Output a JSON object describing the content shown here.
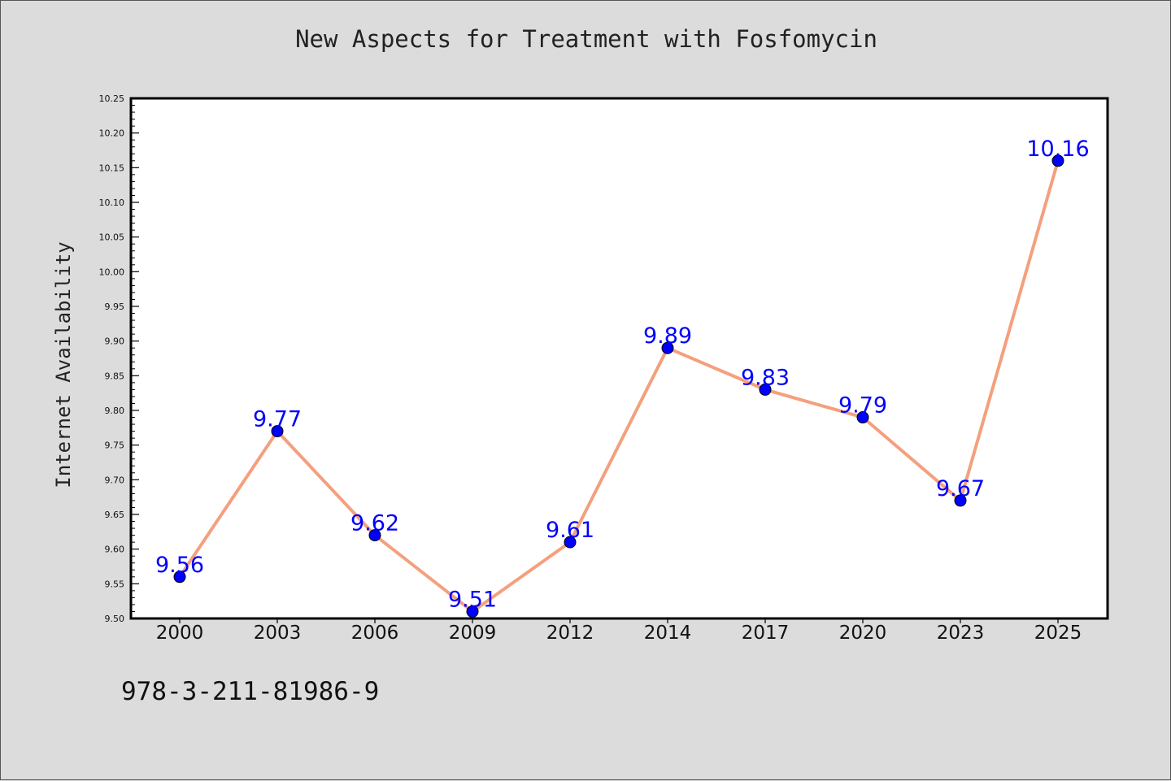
{
  "chart_data": {
    "type": "line",
    "title": "New Aspects for Treatment with Fosfomycin",
    "xlabel": "",
    "ylabel": "Internet Availability",
    "categories": [
      "2000",
      "2003",
      "2006",
      "2009",
      "2012",
      "2014",
      "2017",
      "2020",
      "2023",
      "2025"
    ],
    "series": [
      {
        "values": [
          9.56,
          9.77,
          9.62,
          9.51,
          9.61,
          9.89,
          9.83,
          9.79,
          9.67,
          10.16
        ],
        "labels": [
          "9.56",
          "9.77",
          "9.62",
          "9.51",
          "9.61",
          "9.89",
          "9.83",
          "9.79",
          "9.67",
          "10.16"
        ]
      }
    ],
    "ylim": [
      9.5,
      10.25
    ],
    "yticks": [
      "9.50",
      "9.55",
      "9.60",
      "9.65",
      "9.70",
      "9.75",
      "9.80",
      "9.85",
      "9.90",
      "9.95",
      "10.00",
      "10.05",
      "10.10",
      "10.15",
      "10.20",
      "10.25"
    ],
    "grid": false,
    "line_color": "#f4a07e",
    "marker_color": "#0000ff",
    "label_color": "#0000ff"
  },
  "footnote": "978-3-211-81986-9"
}
